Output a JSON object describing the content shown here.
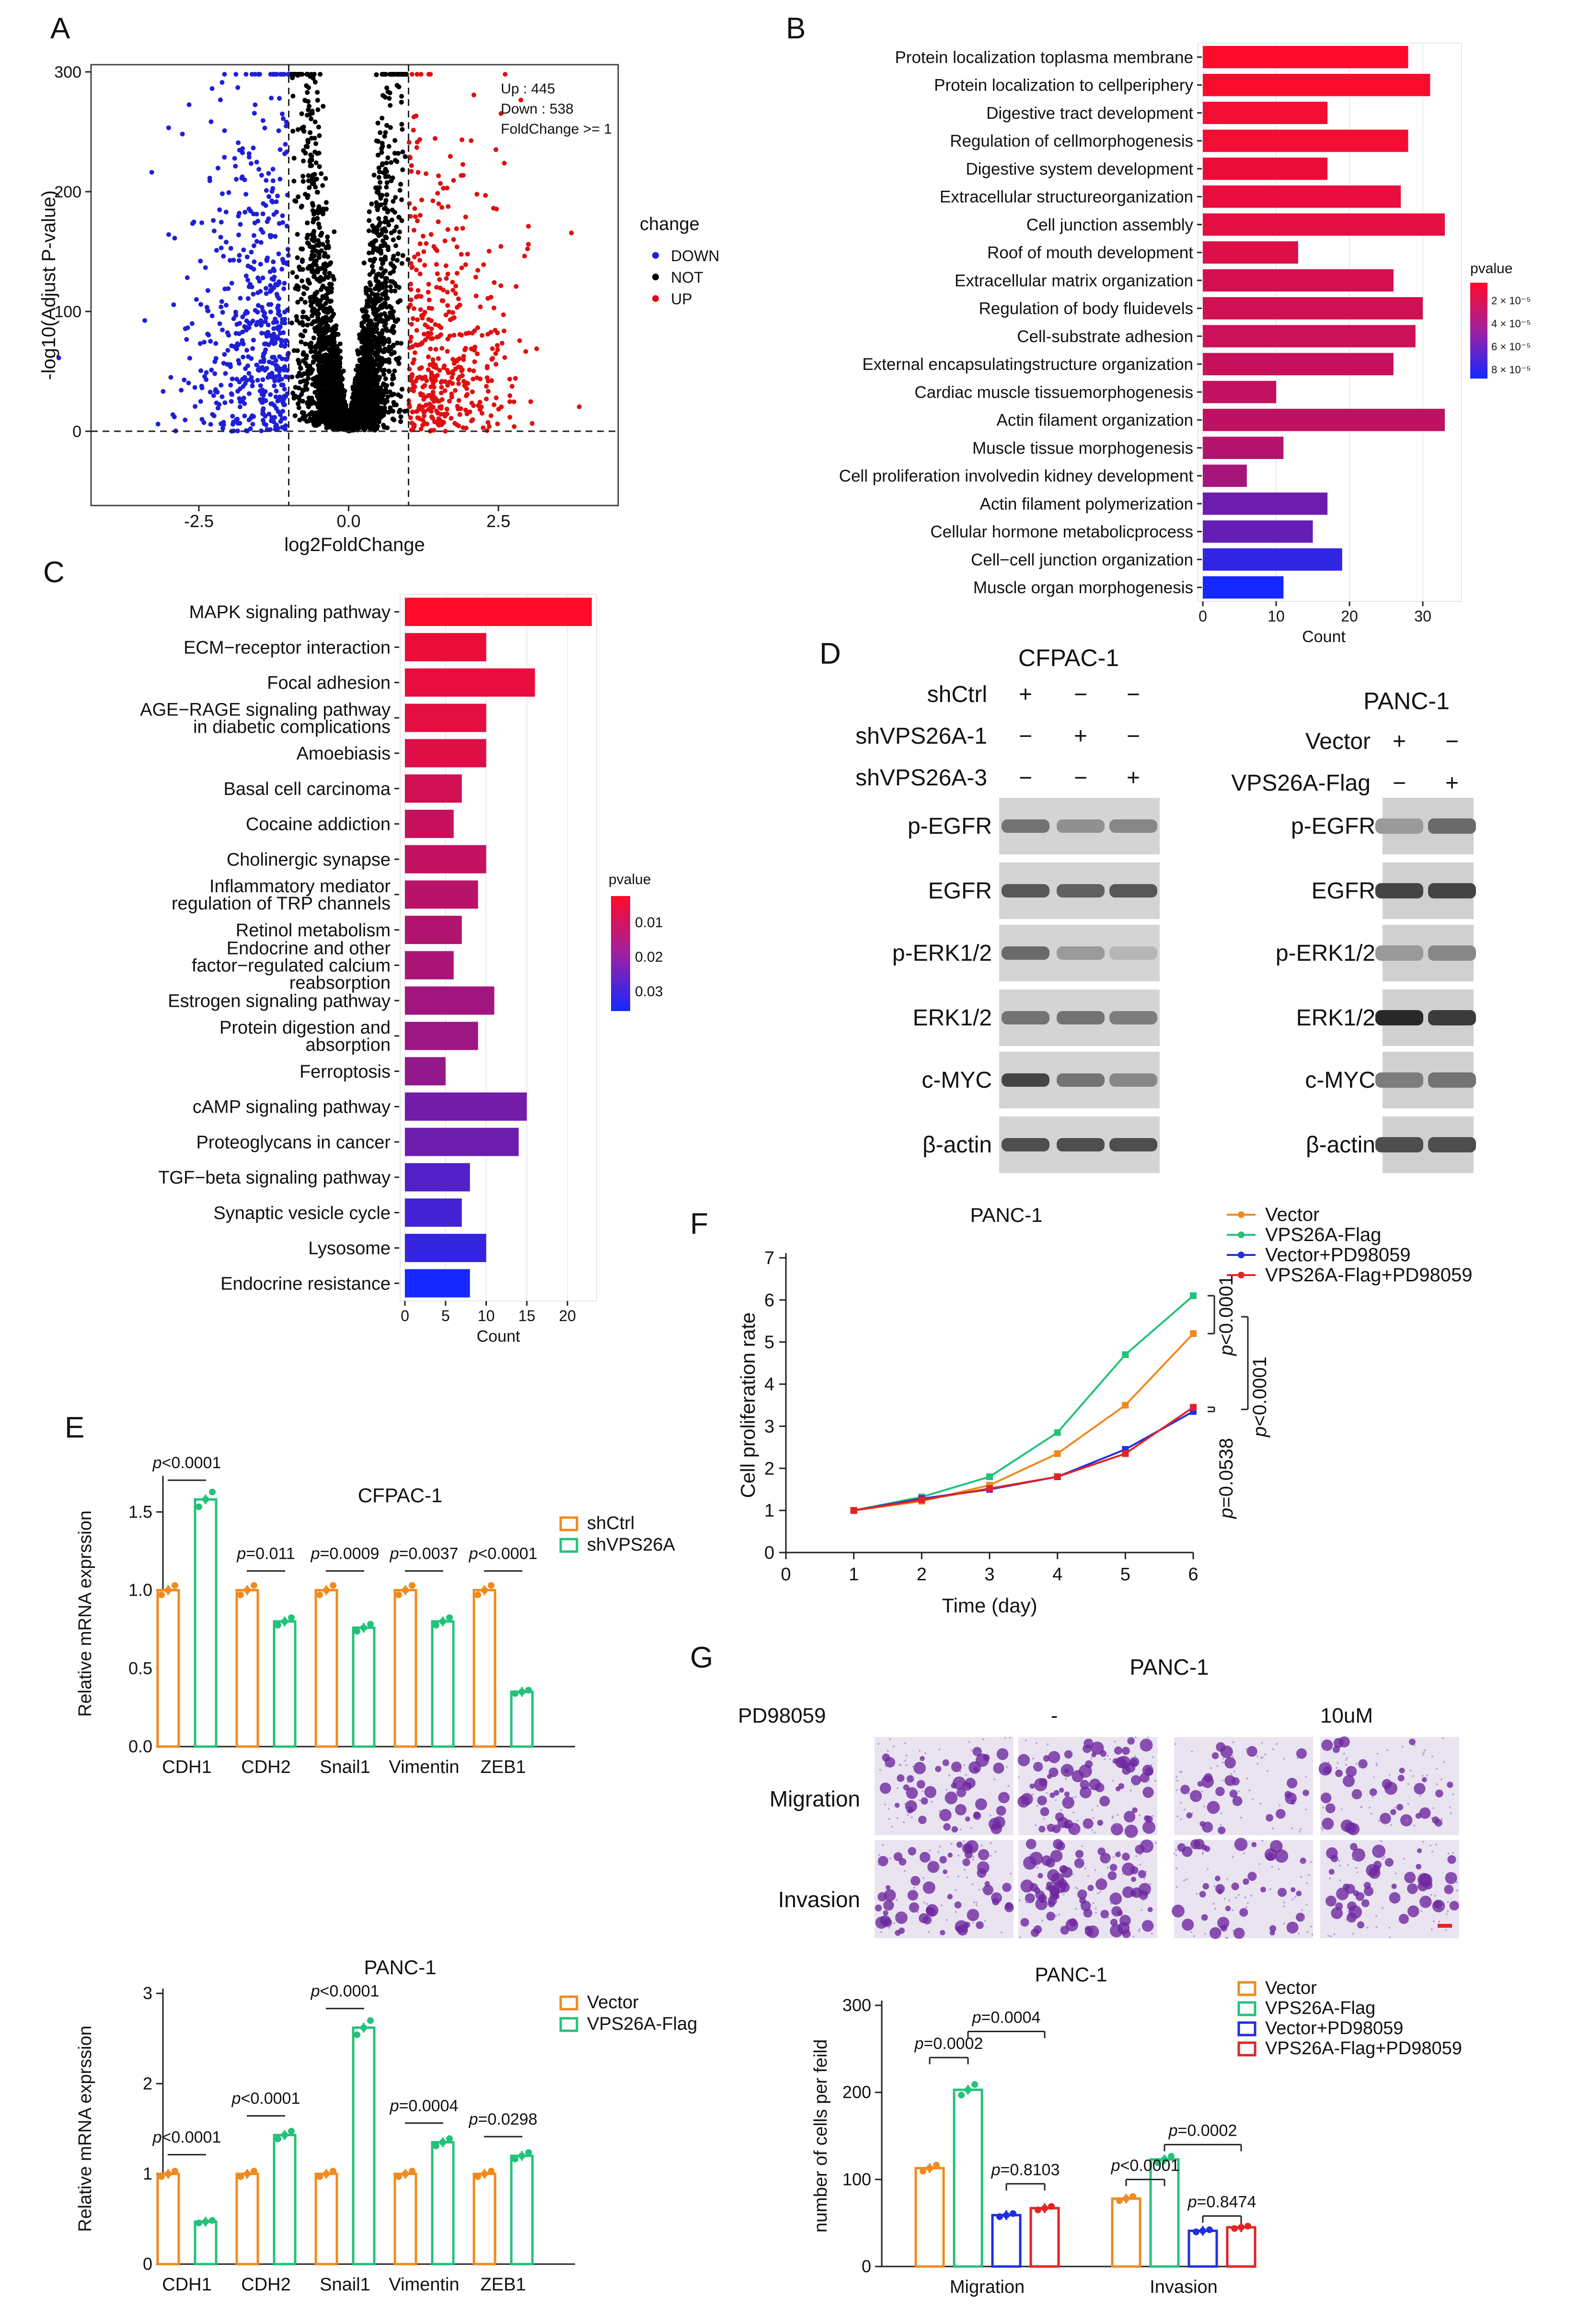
{
  "panels": {
    "A": "A",
    "B": "B",
    "C": "C",
    "D": "D",
    "E": "E",
    "F": "F",
    "G": "G"
  },
  "colors": {
    "down": "#1f1fd6",
    "not": "#000000",
    "up": "#e01010",
    "orange": "#f08a1e",
    "green": "#22c27a",
    "blue": "#1f2fe0",
    "red": "#e52222"
  },
  "volcano": {
    "xlabel": "log2FoldChange",
    "ylabel": "-log10(Adjust P-value)",
    "xticks": [
      "-2.5",
      "0.0",
      "2.5"
    ],
    "yticks": [
      "0",
      "100",
      "200",
      "300"
    ],
    "annot": [
      "Up : 445",
      "Down : 538",
      "FoldChange >= 1"
    ],
    "legend_title": "change",
    "legend": [
      "DOWN",
      "NOT",
      "UP"
    ]
  },
  "chart_data": [
    {
      "type": "bar",
      "id": "go",
      "orientation": "horizontal",
      "categories": [
        "Protein localization toplasma membrane",
        "Protein localization to cellperiphery",
        "Digestive tract development",
        "Regulation of cellmorphogenesis",
        "Digestive system development",
        "Extracellular structureorganization",
        "Cell junction assembly",
        "Roof of mouth development",
        "Extracellular matrix organization",
        "Regulation of body fluidevels",
        "Cell-substrate adhesion",
        "External encapsulatingstructure organization",
        "Cardiac muscle tissuemorphogenesis",
        "Actin filament organization",
        "Muscle tissue morphogenesis",
        "Cell proliferation involvedin kidney development",
        "Actin filament polymerization",
        "Cellular hormone metabolicprocess",
        "Cell−cell junction organization",
        "Muscle organ morphogenesis"
      ],
      "values": [
        28,
        31,
        17,
        28,
        17,
        27,
        33,
        13,
        26,
        30,
        29,
        26,
        10,
        33,
        11,
        6,
        17,
        15,
        19,
        11
      ],
      "color_t": [
        0.0,
        0.02,
        0.05,
        0.05,
        0.08,
        0.1,
        0.12,
        0.15,
        0.18,
        0.2,
        0.22,
        0.24,
        0.26,
        0.28,
        0.32,
        0.38,
        0.62,
        0.66,
        0.88,
        1.0
      ],
      "xlabel": "Count",
      "xticks": [
        "0",
        "10",
        "20",
        "30"
      ],
      "xlim": [
        0,
        33
      ],
      "legend_title": "pvalue",
      "legend_ticks": [
        "2 × 10⁻⁵",
        "4 × 10⁻⁵",
        "6 × 10⁻⁵",
        "8 × 10⁻⁵"
      ]
    },
    {
      "type": "bar",
      "id": "kegg",
      "orientation": "horizontal",
      "categories": [
        [
          "MAPK signaling pathway"
        ],
        [
          "ECM−receptor interaction"
        ],
        [
          "Focal adhesion"
        ],
        [
          "AGE−RAGE signaling pathway",
          "in diabetic complications"
        ],
        [
          "Amoebiasis"
        ],
        [
          "Basal cell carcinoma"
        ],
        [
          "Cocaine addiction"
        ],
        [
          "Cholinergic synapse"
        ],
        [
          "Inflammatory mediator",
          "regulation of TRP channels"
        ],
        [
          "Retinol metabolism"
        ],
        [
          "Endocrine and other",
          "factor−regulated calcium",
          "reabsorption"
        ],
        [
          "Estrogen signaling pathway"
        ],
        [
          "Protein digestion and",
          "absorption"
        ],
        [
          "Ferroptosis"
        ],
        [
          "cAMP signaling pathway"
        ],
        [
          "Proteoglycans in cancer"
        ],
        [
          "TGF−beta signaling pathway"
        ],
        [
          "Synaptic vesicle cycle"
        ],
        [
          "Lysosome"
        ],
        [
          "Endocrine resistance"
        ]
      ],
      "values": [
        23,
        10,
        16,
        10,
        10,
        7,
        6,
        10,
        9,
        7,
        6,
        11,
        9,
        5,
        15,
        14,
        8,
        7,
        10,
        8
      ],
      "color_t": [
        0.0,
        0.08,
        0.1,
        0.12,
        0.14,
        0.2,
        0.24,
        0.26,
        0.3,
        0.33,
        0.36,
        0.4,
        0.42,
        0.46,
        0.6,
        0.62,
        0.74,
        0.8,
        0.86,
        1.0
      ],
      "xlabel": "Count",
      "xticks": [
        "0",
        "5",
        "10",
        "15",
        "20"
      ],
      "xlim": [
        0,
        23
      ],
      "legend_title": "pvalue",
      "legend_ticks": [
        "0.01",
        "0.02",
        "0.03"
      ]
    },
    {
      "type": "bar",
      "id": "e1",
      "title": "CFPAC-1",
      "ylabel": "Relative mRNA exprssion",
      "categories": [
        "CDH1",
        "CDH2",
        "Snail1",
        "Vimentin",
        "ZEB1"
      ],
      "series": [
        {
          "name": "shCtrl",
          "values": [
            1.0,
            1.0,
            1.0,
            1.0,
            1.0
          ]
        },
        {
          "name": "shVPS26A",
          "values": [
            1.58,
            0.8,
            0.76,
            0.8,
            0.35
          ]
        }
      ],
      "yticks": [
        "0.0",
        "0.5",
        "1.0",
        "1.5"
      ],
      "ylim": [
        0,
        1.7
      ],
      "pvalues": [
        "p<0.0001",
        "p=0.011",
        "p=0.0009",
        "p=0.0037",
        "p<0.0001"
      ]
    },
    {
      "type": "bar",
      "id": "e2",
      "title": "PANC-1",
      "ylabel": "Relative mRNA exprssion",
      "categories": [
        "CDH1",
        "CDH2",
        "Snail1",
        "Vimentin",
        "ZEB1"
      ],
      "series": [
        {
          "name": "Vector",
          "values": [
            1.0,
            1.0,
            1.0,
            1.0,
            1.0
          ]
        },
        {
          "name": "VPS26A-Flag",
          "values": [
            0.47,
            1.43,
            2.62,
            1.35,
            1.2
          ]
        }
      ],
      "yticks": [
        "0",
        "1",
        "2",
        "3"
      ],
      "ylim": [
        0,
        3
      ],
      "pvalues": [
        "p<0.0001",
        "p<0.0001",
        "p<0.0001",
        "p=0.0004",
        "p=0.0298"
      ]
    },
    {
      "type": "line",
      "id": "f",
      "title": "PANC-1",
      "xlabel": "Time (day)",
      "ylabel": "Cell proliferation rate",
      "x": [
        1,
        2,
        3,
        4,
        5,
        6
      ],
      "series": [
        {
          "name": "Vector",
          "values": [
            1.0,
            1.22,
            1.6,
            2.35,
            3.5,
            5.2
          ]
        },
        {
          "name": "VPS26A-Flag",
          "values": [
            1.0,
            1.32,
            1.8,
            2.85,
            4.7,
            6.1
          ]
        },
        {
          "name": "Vector+PD98059",
          "values": [
            1.0,
            1.28,
            1.5,
            1.8,
            2.45,
            3.35
          ]
        },
        {
          "name": "VPS26A-Flag+PD98059",
          "values": [
            1.0,
            1.25,
            1.52,
            1.8,
            2.35,
            3.45
          ]
        }
      ],
      "xticks": [
        "0",
        "1",
        "2",
        "3",
        "4",
        "5",
        "6"
      ],
      "yticks": [
        "0",
        "1",
        "2",
        "3",
        "4",
        "5",
        "6",
        "7"
      ],
      "xlim": [
        0,
        6
      ],
      "ylim": [
        0,
        7
      ],
      "pvalues": [
        "p<0.0001",
        "p<0.0001",
        "p=0.0538"
      ]
    },
    {
      "type": "bar",
      "id": "g",
      "title": "PANC-1",
      "ylabel": "number of cells per feild",
      "categories": [
        "Migration",
        "Invasion"
      ],
      "series": [
        {
          "name": "Vector",
          "values": [
            113,
            78
          ]
        },
        {
          "name": "VPS26A-Flag",
          "values": [
            203,
            123
          ]
        },
        {
          "name": "Vector+PD98059",
          "values": [
            59,
            41
          ]
        },
        {
          "name": "VPS26A-Flag+PD98059",
          "values": [
            67,
            45
          ]
        }
      ],
      "yticks": [
        "0",
        "100",
        "200",
        "300"
      ],
      "ylim": [
        0,
        300
      ],
      "pvalues": [
        "p=0.0002",
        "p=0.0004",
        "p=0.8103",
        "p<0.0001",
        "p=0.0002",
        "p=0.8474"
      ]
    }
  ],
  "western": {
    "left_cell": "CFPAC-1",
    "right_cell": "PANC-1",
    "left_conditions": [
      {
        "name": "shCtrl",
        "signs": [
          "+",
          "−",
          "−"
        ]
      },
      {
        "name": "shVPS26A-1",
        "signs": [
          "−",
          "+",
          "−"
        ]
      },
      {
        "name": "shVPS26A-3",
        "signs": [
          "−",
          "−",
          "+"
        ]
      }
    ],
    "right_conditions": [
      {
        "name": "Vector",
        "signs": [
          "+",
          "−"
        ]
      },
      {
        "name": "VPS26A-Flag",
        "signs": [
          "−",
          "+"
        ]
      }
    ],
    "proteins": [
      "p-EGFR",
      "EGFR",
      "p-ERK1/2",
      "ERK1/2",
      "c-MYC",
      "β-actin"
    ],
    "left_intensity": [
      [
        0.55,
        0.4,
        0.45
      ],
      [
        0.7,
        0.65,
        0.7
      ],
      [
        0.6,
        0.35,
        0.2
      ],
      [
        0.55,
        0.55,
        0.5
      ],
      [
        0.8,
        0.55,
        0.45
      ],
      [
        0.75,
        0.75,
        0.75
      ]
    ],
    "right_intensity": [
      [
        0.35,
        0.6
      ],
      [
        0.8,
        0.8
      ],
      [
        0.35,
        0.45
      ],
      [
        0.95,
        0.85
      ],
      [
        0.5,
        0.55
      ],
      [
        0.75,
        0.75
      ]
    ]
  },
  "transwell": {
    "title": "PANC-1",
    "drug_label": "PD98059",
    "cond_minus": "-",
    "cond_plus": "10uM",
    "rows": [
      "Migration",
      "Invasion"
    ]
  }
}
